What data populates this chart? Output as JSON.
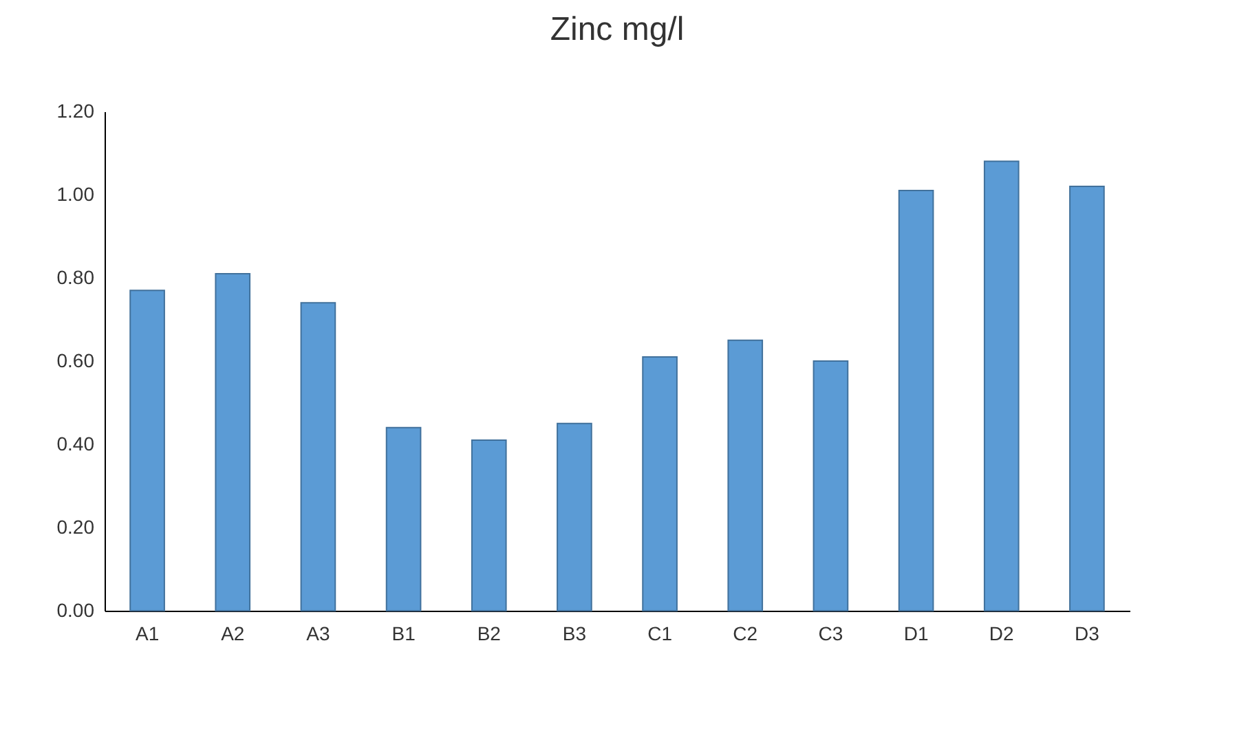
{
  "chart_data": {
    "type": "bar",
    "title": "Zinc mg/l",
    "categories": [
      "A1",
      "A2",
      "A3",
      "B1",
      "B2",
      "B3",
      "C1",
      "C2",
      "C3",
      "D1",
      "D2",
      "D3"
    ],
    "values": [
      0.77,
      0.81,
      0.74,
      0.44,
      0.41,
      0.45,
      0.61,
      0.65,
      0.6,
      1.01,
      1.08,
      1.02
    ],
    "color": "#5b9bd5",
    "ylim": [
      0,
      1.2
    ],
    "yticks": [
      {
        "value": 0,
        "label": "0.00"
      },
      {
        "value": 0.2,
        "label": "0.20"
      },
      {
        "value": 0.4,
        "label": "0.40"
      },
      {
        "value": 0.6,
        "label": "0.60"
      },
      {
        "value": 0.8,
        "label": "0.80"
      },
      {
        "value": 1.0,
        "label": "1.00"
      },
      {
        "value": 1.2,
        "label": "1.20"
      }
    ],
    "grid": false
  }
}
